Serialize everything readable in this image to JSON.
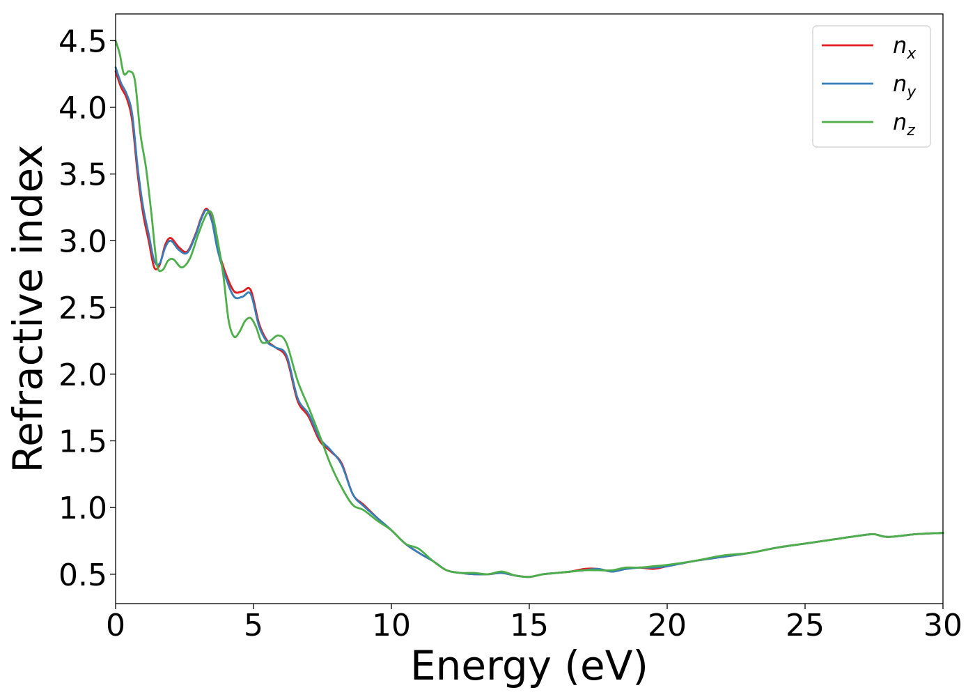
{
  "chart_data": {
    "type": "line",
    "title": "",
    "xlabel": "Energy (eV)",
    "ylabel": "Refractive index",
    "xlim": [
      0,
      30
    ],
    "ylim": [
      0.28,
      4.7
    ],
    "xticks": [
      0,
      5,
      10,
      15,
      20,
      25,
      30
    ],
    "xtick_labels": [
      "0",
      "5",
      "10",
      "15",
      "20",
      "25",
      "30"
    ],
    "yticks": [
      0.5,
      1.0,
      1.5,
      2.0,
      2.5,
      3.0,
      3.5,
      4.0,
      4.5
    ],
    "ytick_labels": [
      "0.5",
      "1.0",
      "1.5",
      "2.0",
      "2.5",
      "3.0",
      "3.5",
      "4.0",
      "4.5"
    ],
    "grid": false,
    "legend_position": "top-right",
    "series": [
      {
        "name": "n",
        "subscript": "x",
        "color": "#e41a1c",
        "x": [
          0,
          0.2,
          0.4,
          0.6,
          0.8,
          1.0,
          1.2,
          1.4,
          1.6,
          1.8,
          2.0,
          2.3,
          2.6,
          2.9,
          3.1,
          3.3,
          3.5,
          3.7,
          4.0,
          4.3,
          4.6,
          4.9,
          5.2,
          5.5,
          5.8,
          6.2,
          6.6,
          7.0,
          7.4,
          7.8,
          8.2,
          8.6,
          9.0,
          9.5,
          10.0,
          10.5,
          11.0,
          11.5,
          12.0,
          12.5,
          13.0,
          13.5,
          14.0,
          14.5,
          15.0,
          15.5,
          16.0,
          16.5,
          17.0,
          17.5,
          18.0,
          18.5,
          19.0,
          19.5,
          20.0,
          21.0,
          22.0,
          23.0,
          24.0,
          25.0,
          26.0,
          27.0,
          27.5,
          28.0,
          29.0,
          30.0
        ],
        "values": [
          4.27,
          4.15,
          4.07,
          3.9,
          3.5,
          3.2,
          3.0,
          2.8,
          2.82,
          2.97,
          3.02,
          2.95,
          2.92,
          3.05,
          3.17,
          3.24,
          3.15,
          2.95,
          2.75,
          2.62,
          2.62,
          2.63,
          2.38,
          2.25,
          2.2,
          2.12,
          1.8,
          1.68,
          1.5,
          1.42,
          1.33,
          1.1,
          1.02,
          0.92,
          0.83,
          0.73,
          0.66,
          0.6,
          0.53,
          0.51,
          0.5,
          0.5,
          0.51,
          0.49,
          0.48,
          0.5,
          0.51,
          0.52,
          0.54,
          0.54,
          0.52,
          0.54,
          0.55,
          0.54,
          0.56,
          0.6,
          0.63,
          0.66,
          0.7,
          0.73,
          0.76,
          0.79,
          0.8,
          0.78,
          0.8,
          0.81
        ]
      },
      {
        "name": "n",
        "subscript": "y",
        "color": "#377eb8",
        "x": [
          0,
          0.2,
          0.4,
          0.6,
          0.8,
          1.0,
          1.2,
          1.4,
          1.6,
          1.8,
          2.0,
          2.3,
          2.6,
          2.9,
          3.1,
          3.3,
          3.5,
          3.7,
          4.0,
          4.3,
          4.6,
          4.9,
          5.2,
          5.5,
          5.8,
          6.2,
          6.6,
          7.0,
          7.4,
          7.8,
          8.2,
          8.6,
          9.0,
          9.5,
          10.0,
          10.5,
          11.0,
          11.5,
          12.0,
          12.5,
          13.0,
          13.5,
          14.0,
          14.5,
          15.0,
          15.5,
          16.0,
          16.5,
          17.0,
          17.5,
          18.0,
          18.5,
          19.0,
          19.5,
          20.0,
          21.0,
          22.0,
          23.0,
          24.0,
          25.0,
          26.0,
          27.0,
          27.5,
          28.0,
          29.0,
          30.0
        ],
        "values": [
          4.3,
          4.18,
          4.1,
          3.95,
          3.55,
          3.25,
          3.05,
          2.85,
          2.83,
          2.95,
          3.0,
          2.93,
          2.91,
          3.04,
          3.16,
          3.23,
          3.14,
          2.93,
          2.72,
          2.58,
          2.58,
          2.6,
          2.36,
          2.24,
          2.2,
          2.14,
          1.82,
          1.7,
          1.52,
          1.43,
          1.32,
          1.1,
          1.01,
          0.92,
          0.83,
          0.73,
          0.66,
          0.6,
          0.53,
          0.51,
          0.5,
          0.5,
          0.51,
          0.49,
          0.48,
          0.5,
          0.51,
          0.52,
          0.53,
          0.54,
          0.52,
          0.54,
          0.55,
          0.55,
          0.56,
          0.6,
          0.63,
          0.66,
          0.7,
          0.73,
          0.76,
          0.79,
          0.8,
          0.78,
          0.8,
          0.81
        ]
      },
      {
        "name": "n",
        "subscript": "z",
        "color": "#4daf4a",
        "x": [
          0,
          0.15,
          0.3,
          0.5,
          0.7,
          0.9,
          1.1,
          1.3,
          1.5,
          1.7,
          1.9,
          2.1,
          2.4,
          2.7,
          3.0,
          3.3,
          3.5,
          3.7,
          3.9,
          4.1,
          4.3,
          4.5,
          4.7,
          4.9,
          5.1,
          5.3,
          5.6,
          5.9,
          6.2,
          6.6,
          7.0,
          7.4,
          7.8,
          8.2,
          8.6,
          9.0,
          9.5,
          10.0,
          10.5,
          11.0,
          11.5,
          12.0,
          12.5,
          13.0,
          13.5,
          14.0,
          14.5,
          15.0,
          15.5,
          16.0,
          16.5,
          17.0,
          17.5,
          18.0,
          18.5,
          19.0,
          19.5,
          20.0,
          21.0,
          22.0,
          23.0,
          24.0,
          25.0,
          26.0,
          27.0,
          27.5,
          28.0,
          29.0,
          30.0
        ],
        "values": [
          4.5,
          4.4,
          4.25,
          4.27,
          4.2,
          3.8,
          3.55,
          3.2,
          2.82,
          2.78,
          2.85,
          2.86,
          2.8,
          2.87,
          3.05,
          3.2,
          3.2,
          3.0,
          2.75,
          2.4,
          2.28,
          2.32,
          2.4,
          2.42,
          2.35,
          2.24,
          2.25,
          2.29,
          2.23,
          1.95,
          1.75,
          1.54,
          1.32,
          1.15,
          1.02,
          0.98,
          0.9,
          0.83,
          0.73,
          0.69,
          0.6,
          0.53,
          0.51,
          0.51,
          0.5,
          0.52,
          0.49,
          0.48,
          0.5,
          0.51,
          0.52,
          0.53,
          0.53,
          0.53,
          0.55,
          0.55,
          0.56,
          0.57,
          0.6,
          0.64,
          0.66,
          0.7,
          0.73,
          0.76,
          0.79,
          0.8,
          0.78,
          0.8,
          0.81
        ]
      }
    ]
  }
}
